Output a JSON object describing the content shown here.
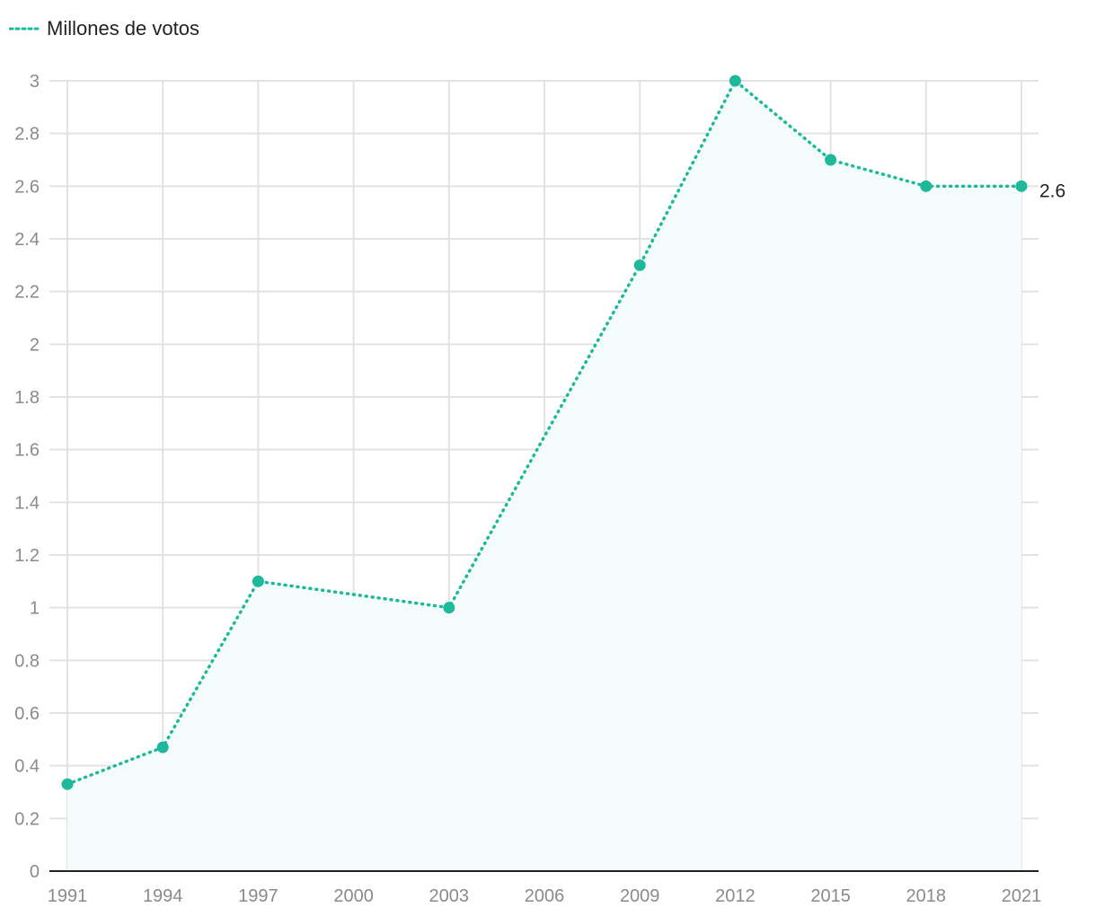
{
  "colors": {
    "series": "#1db99a",
    "area": "#f3fcfb",
    "grid": "#e2e2e2",
    "axis": "#222222",
    "tick_text": "#8a8a8a"
  },
  "chart_data": {
    "type": "line",
    "x": [
      1991,
      1994,
      1997,
      2000,
      2003,
      2006,
      2009,
      2012,
      2015,
      2018,
      2021
    ],
    "x_tick_labels": [
      "1991",
      "1994",
      "1997",
      "2000",
      "2003",
      "2006",
      "2009",
      "2012",
      "2015",
      "2018",
      "2021"
    ],
    "y_tick_labels": [
      "0",
      "0.2",
      "0.4",
      "0.6",
      "0.8",
      "1",
      "1.2",
      "1.4",
      "1.6",
      "1.8",
      "2",
      "2.2",
      "2.4",
      "2.6",
      "2.8",
      "3"
    ],
    "series": [
      {
        "name": "Millones de votos",
        "x": [
          1991,
          1994,
          1997,
          2003,
          2009,
          2012,
          2015,
          2018,
          2021
        ],
        "values": [
          0.33,
          0.47,
          1.1,
          1.0,
          2.3,
          3.0,
          2.7,
          2.6,
          2.6
        ],
        "line_style": "dotted",
        "end_label": "2.6"
      }
    ],
    "xlim": [
      1991,
      2021
    ],
    "ylim": [
      0,
      3
    ],
    "y_step": 0.2,
    "grid": true,
    "area_fill": true,
    "legend": "top-left"
  }
}
